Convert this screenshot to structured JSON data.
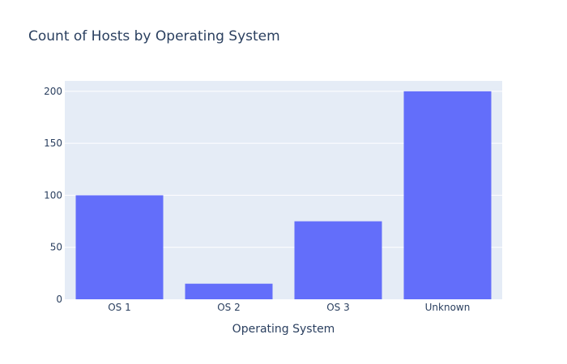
{
  "chart_data": {
    "type": "bar",
    "title": "Count of Hosts by Operating System",
    "xlabel": "Operating System",
    "ylabel": "",
    "categories": [
      "OS 1",
      "OS 2",
      "OS 3",
      "Unknown"
    ],
    "values": [
      100,
      15,
      75,
      200
    ],
    "ylim": [
      0,
      210
    ],
    "yticks": [
      0,
      50,
      100,
      150,
      200
    ],
    "grid": true,
    "legend": "none",
    "colors": {
      "bar": "#636efa",
      "plot_background": "#e5ecf6",
      "gridline": "#ffffff",
      "text": "#2a3f5f"
    }
  }
}
